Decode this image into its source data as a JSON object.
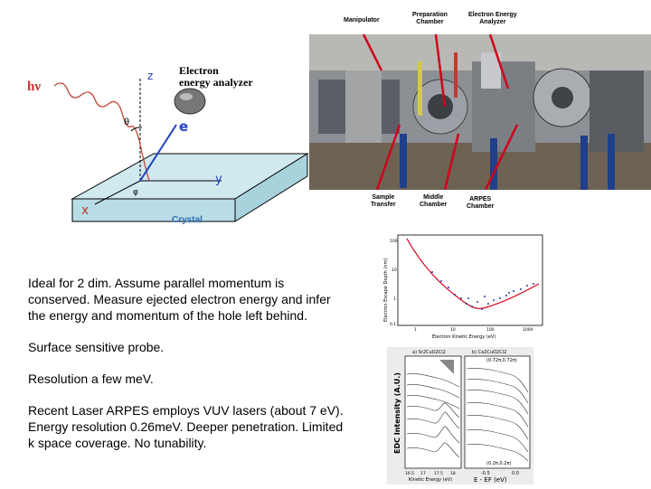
{
  "diagram": {
    "hv_label": "hν",
    "analyzer_label": "Electron\nenergy analyzer",
    "z_label": "z",
    "y_label": "y",
    "x_label": "x",
    "e_label": "e",
    "theta_label": "θ",
    "phi_label": "φ",
    "crystal_label": "Crystal"
  },
  "photo": {
    "tags": {
      "manipulator": "Manipulator",
      "preparation": "Preparation\nChamber",
      "analyzer": "Electron Energy\nAnalyzer",
      "sample_transfer": "Sample\nTransfer",
      "middle": "Middle\nChamber",
      "arpes": "ARPES\nChamber"
    }
  },
  "text": {
    "p1": "Ideal for 2 dim. Assume parallel momentum is conserved. Measure ejected electron energy and infer the energy and momentum of the hole left behind.",
    "p2": "Surface sensitive probe.",
    "p3": "Resolution a few meV.",
    "p4": "Recent Laser ARPES employs VUV lasers (about 7 eV). Energy resolution 0.26meV. Deeper penetration. Limited k space coverage. No tunability."
  },
  "plot1": {
    "ylabel": "Electron Escape Depth (nm)",
    "xlabel": "Electron Kinetic Energy (eV)",
    "xticks": [
      "1",
      "10",
      "100",
      "1000"
    ],
    "yticks": [
      "100",
      "10",
      "1",
      "0.1"
    ]
  },
  "plot2": {
    "panel_a": "a) Sr2CuO2Cl2",
    "panel_b": "b) Ca2CuO2Cl2",
    "ylabel": "EDC Intensity (A.U.)",
    "xlabel_a": "Kinetic Energy (eV)",
    "xlabel_b": "E - EF (eV)",
    "xticks_a": [
      "16.5",
      "17",
      "17.5",
      "18"
    ],
    "xticks_b": [
      "-0.5",
      "0.0"
    ],
    "top_k": "(0.72π,0.72π)",
    "bottom_k": "(0.2π,0.2π)"
  }
}
